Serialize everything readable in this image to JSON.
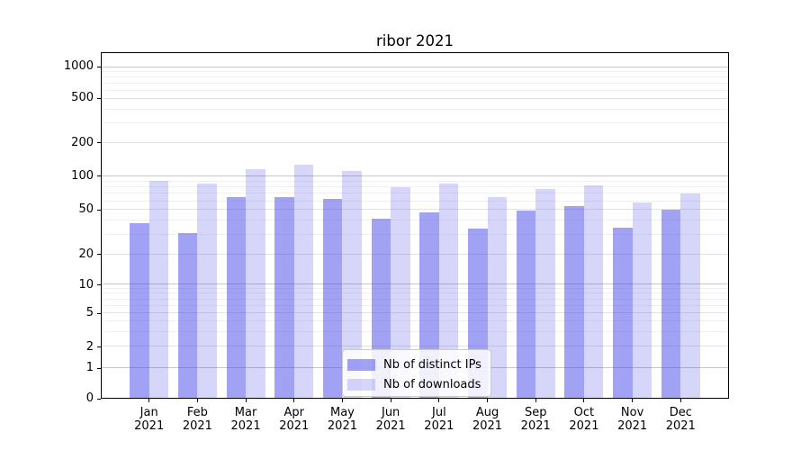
{
  "title": "ribor 2021",
  "chart_data": {
    "type": "bar",
    "title": "ribor 2021",
    "categories": [
      "Jan",
      "Feb",
      "Mar",
      "Apr",
      "May",
      "Jun",
      "Jul",
      "Aug",
      "Sep",
      "Oct",
      "Nov",
      "Dec"
    ],
    "x_year": "2021",
    "series": [
      {
        "name": "Nb of distinct IPs",
        "values": [
          38,
          31,
          65,
          65,
          63,
          42,
          48,
          34,
          49,
          54,
          35,
          50
        ],
        "color": "#4646ec",
        "alpha": 0.5
      },
      {
        "name": "Nb of downloads",
        "values": [
          92,
          86,
          117,
          128,
          113,
          80,
          87,
          65,
          77,
          84,
          58,
          71
        ],
        "color": "#4646ec",
        "alpha": 0.22
      }
    ],
    "xlabel": "",
    "ylabel": "",
    "y_scale": "symlog",
    "y_ticks": [
      0,
      1,
      2,
      5,
      10,
      20,
      50,
      100,
      200,
      500,
      1000
    ],
    "ylim": [
      0,
      1300
    ],
    "grid": "horizontal",
    "legend_position": "lower center"
  }
}
